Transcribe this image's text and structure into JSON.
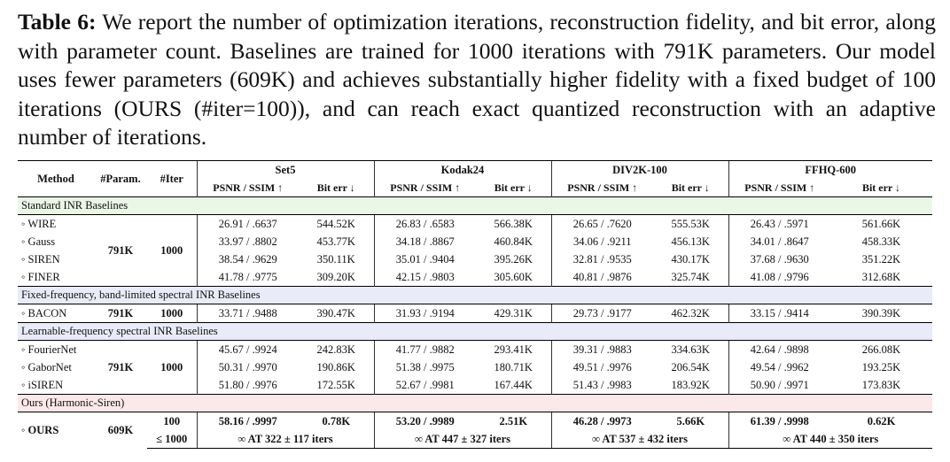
{
  "caption": {
    "label": "Table 6:",
    "text": "We report the number of optimization iterations, reconstruction fidelity, and bit error, along with parameter count. Baselines are trained for 1000 iterations with 791K parameters. Our model uses fewer parameters (609K) and achieves substantially higher fidelity with a fixed budget of 100 iterations (OURS (#iter=100)), and can reach exact quantized reconstruction with an adaptive number of iterations."
  },
  "header": {
    "method": "Method",
    "param": "#Param.",
    "iter": "#Iter",
    "datasets": [
      "Set5",
      "Kodak24",
      "DIV2K-100",
      "FFHQ-600"
    ],
    "psnr_ssim": "PSNR / SSIM ↑",
    "bit_err": "Bit err ↓"
  },
  "sections": [
    {
      "title": "Standard INR Baselines"
    },
    {
      "title": "Fixed-frequency, band-limited spectral INR Baselines"
    },
    {
      "title": "Learnable-frequency spectral INR Baselines"
    },
    {
      "title": "Ours (Harmonic-Siren)"
    }
  ],
  "groups": [
    {
      "param": "791K",
      "iter": "1000",
      "rows": [
        {
          "method": "◦ WIRE",
          "cells": [
            "26.91 / .6637",
            "544.52K",
            "26.83 / .6583",
            "566.38K",
            "26.65 / .7620",
            "555.53K",
            "26.43 / .5971",
            "561.66K"
          ]
        },
        {
          "method": "◦ Gauss",
          "cells": [
            "33.97 / .8802",
            "453.77K",
            "34.18 / .8867",
            "460.84K",
            "34.06 / .9211",
            "456.13K",
            "34.01 / .8647",
            "458.33K"
          ]
        },
        {
          "method": "◦ SIREN",
          "cells": [
            "38.54 / .9629",
            "350.11K",
            "35.01 / .9404",
            "395.26K",
            "32.81 / .9535",
            "430.17K",
            "37.68 / .9630",
            "351.22K"
          ]
        },
        {
          "method": "◦ FINER",
          "cells": [
            "41.78 / .9775",
            "309.20K",
            "42.15 / .9803",
            "305.60K",
            "40.81 / .9876",
            "325.74K",
            "41.08 / .9796",
            "312.68K"
          ]
        }
      ]
    },
    {
      "param": "791K",
      "iter": "1000",
      "rows": [
        {
          "method": "◦ BACON",
          "cells": [
            "33.71 / .9488",
            "390.47K",
            "31.93 / .9194",
            "429.31K",
            "29.73 / .9177",
            "462.32K",
            "33.15 / .9414",
            "390.39K"
          ]
        }
      ]
    },
    {
      "param": "791K",
      "iter": "1000",
      "rows": [
        {
          "method": "◦ FourierNet",
          "cells": [
            "45.67 / .9924",
            "242.83K",
            "41.77 / .9882",
            "293.41K",
            "39.31 / .9883",
            "334.63K",
            "42.64 / .9898",
            "266.08K"
          ]
        },
        {
          "method": "◦ GaborNet",
          "cells": [
            "50.31 / .9970",
            "190.86K",
            "51.38 / .9975",
            "180.71K",
            "49.51 / .9976",
            "206.54K",
            "49.54 / .9962",
            "193.25K"
          ]
        },
        {
          "method": "◦ iSIREN",
          "cells": [
            "51.80 / .9976",
            "172.55K",
            "52.67 / .9981",
            "167.44K",
            "51.43 / .9983",
            "183.92K",
            "50.90 / .9971",
            "173.83K"
          ]
        }
      ]
    }
  ],
  "ours": {
    "method": "◦ OURS",
    "param": "609K",
    "iter_fixed": "100",
    "iter_adaptive": "≤ 1000",
    "fixed_cells": [
      "58.16 / .9997",
      "0.78K",
      "53.20 / .9989",
      "2.51K",
      "46.28 / .9973",
      "5.66K",
      "61.39 / .9998",
      "0.62K"
    ],
    "adaptive_cells": [
      "∞ AT 322 ± 117 iters",
      "∞ AT 447 ± 327 iters",
      "∞ AT 537 ± 432 iters",
      "∞ AT 440 ± 350 iters"
    ]
  }
}
